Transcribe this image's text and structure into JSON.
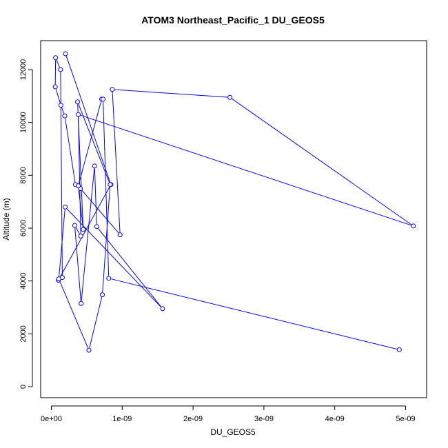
{
  "chart_data": {
    "type": "line",
    "title": "ATOM3 Northeast_Pacific_1 DU_GEOS5",
    "xlabel": "DU_GEOS5",
    "ylabel": "Altitude (m)",
    "xlim": [
      -5e-11,
      5.3e-09
    ],
    "ylim": [
      -400,
      13000
    ],
    "x_ticks": [
      0,
      1e-09,
      2e-09,
      3e-09,
      4e-09,
      5e-09
    ],
    "x_tick_labels": [
      "0e+00",
      "1e-09",
      "2e-09",
      "3e-09",
      "4e-09",
      "5e-09"
    ],
    "y_ticks": [
      0,
      2000,
      4000,
      6000,
      8000,
      10000,
      12000
    ],
    "y_tick_labels": [
      "0",
      "2000",
      "4000",
      "6000",
      "8000",
      "10000",
      "12000"
    ],
    "grid": false,
    "series": [
      {
        "color": "#0000ff",
        "marker": "open-circle",
        "x": [
          2e-10,
          8.4e-10,
          1e-10,
          1.55e-10,
          1.3e-10,
          6e-11,
          5.5e-11,
          1.35e-10,
          1.9e-10,
          3.4e-10,
          4.1e-10,
          9.7e-10,
          8.6e-10,
          2.52e-09,
          5.11e-09,
          3.8e-10,
          4.15e-10,
          3.3e-10,
          4.2e-10,
          6.1e-10,
          6.4e-10,
          1.57e-09,
          1.95e-10,
          1.05e-10,
          5.3e-10,
          7.2e-10,
          8.3e-10,
          3.7e-10,
          4.5e-10,
          3.8e-10,
          7.1e-10,
          7.3e-10,
          8.1e-10,
          4.91e-09
        ],
        "y": [
          12600,
          7650,
          4030,
          4130,
          12000,
          12450,
          11350,
          10650,
          10250,
          7650,
          7500,
          5750,
          11250,
          10950,
          6080,
          10300,
          5700,
          6100,
          3150,
          8350,
          6060,
          2950,
          6800,
          4080,
          1380,
          3480,
          7650,
          10780,
          5950,
          7600,
          10880,
          10880,
          4100,
          1400
        ]
      }
    ]
  }
}
